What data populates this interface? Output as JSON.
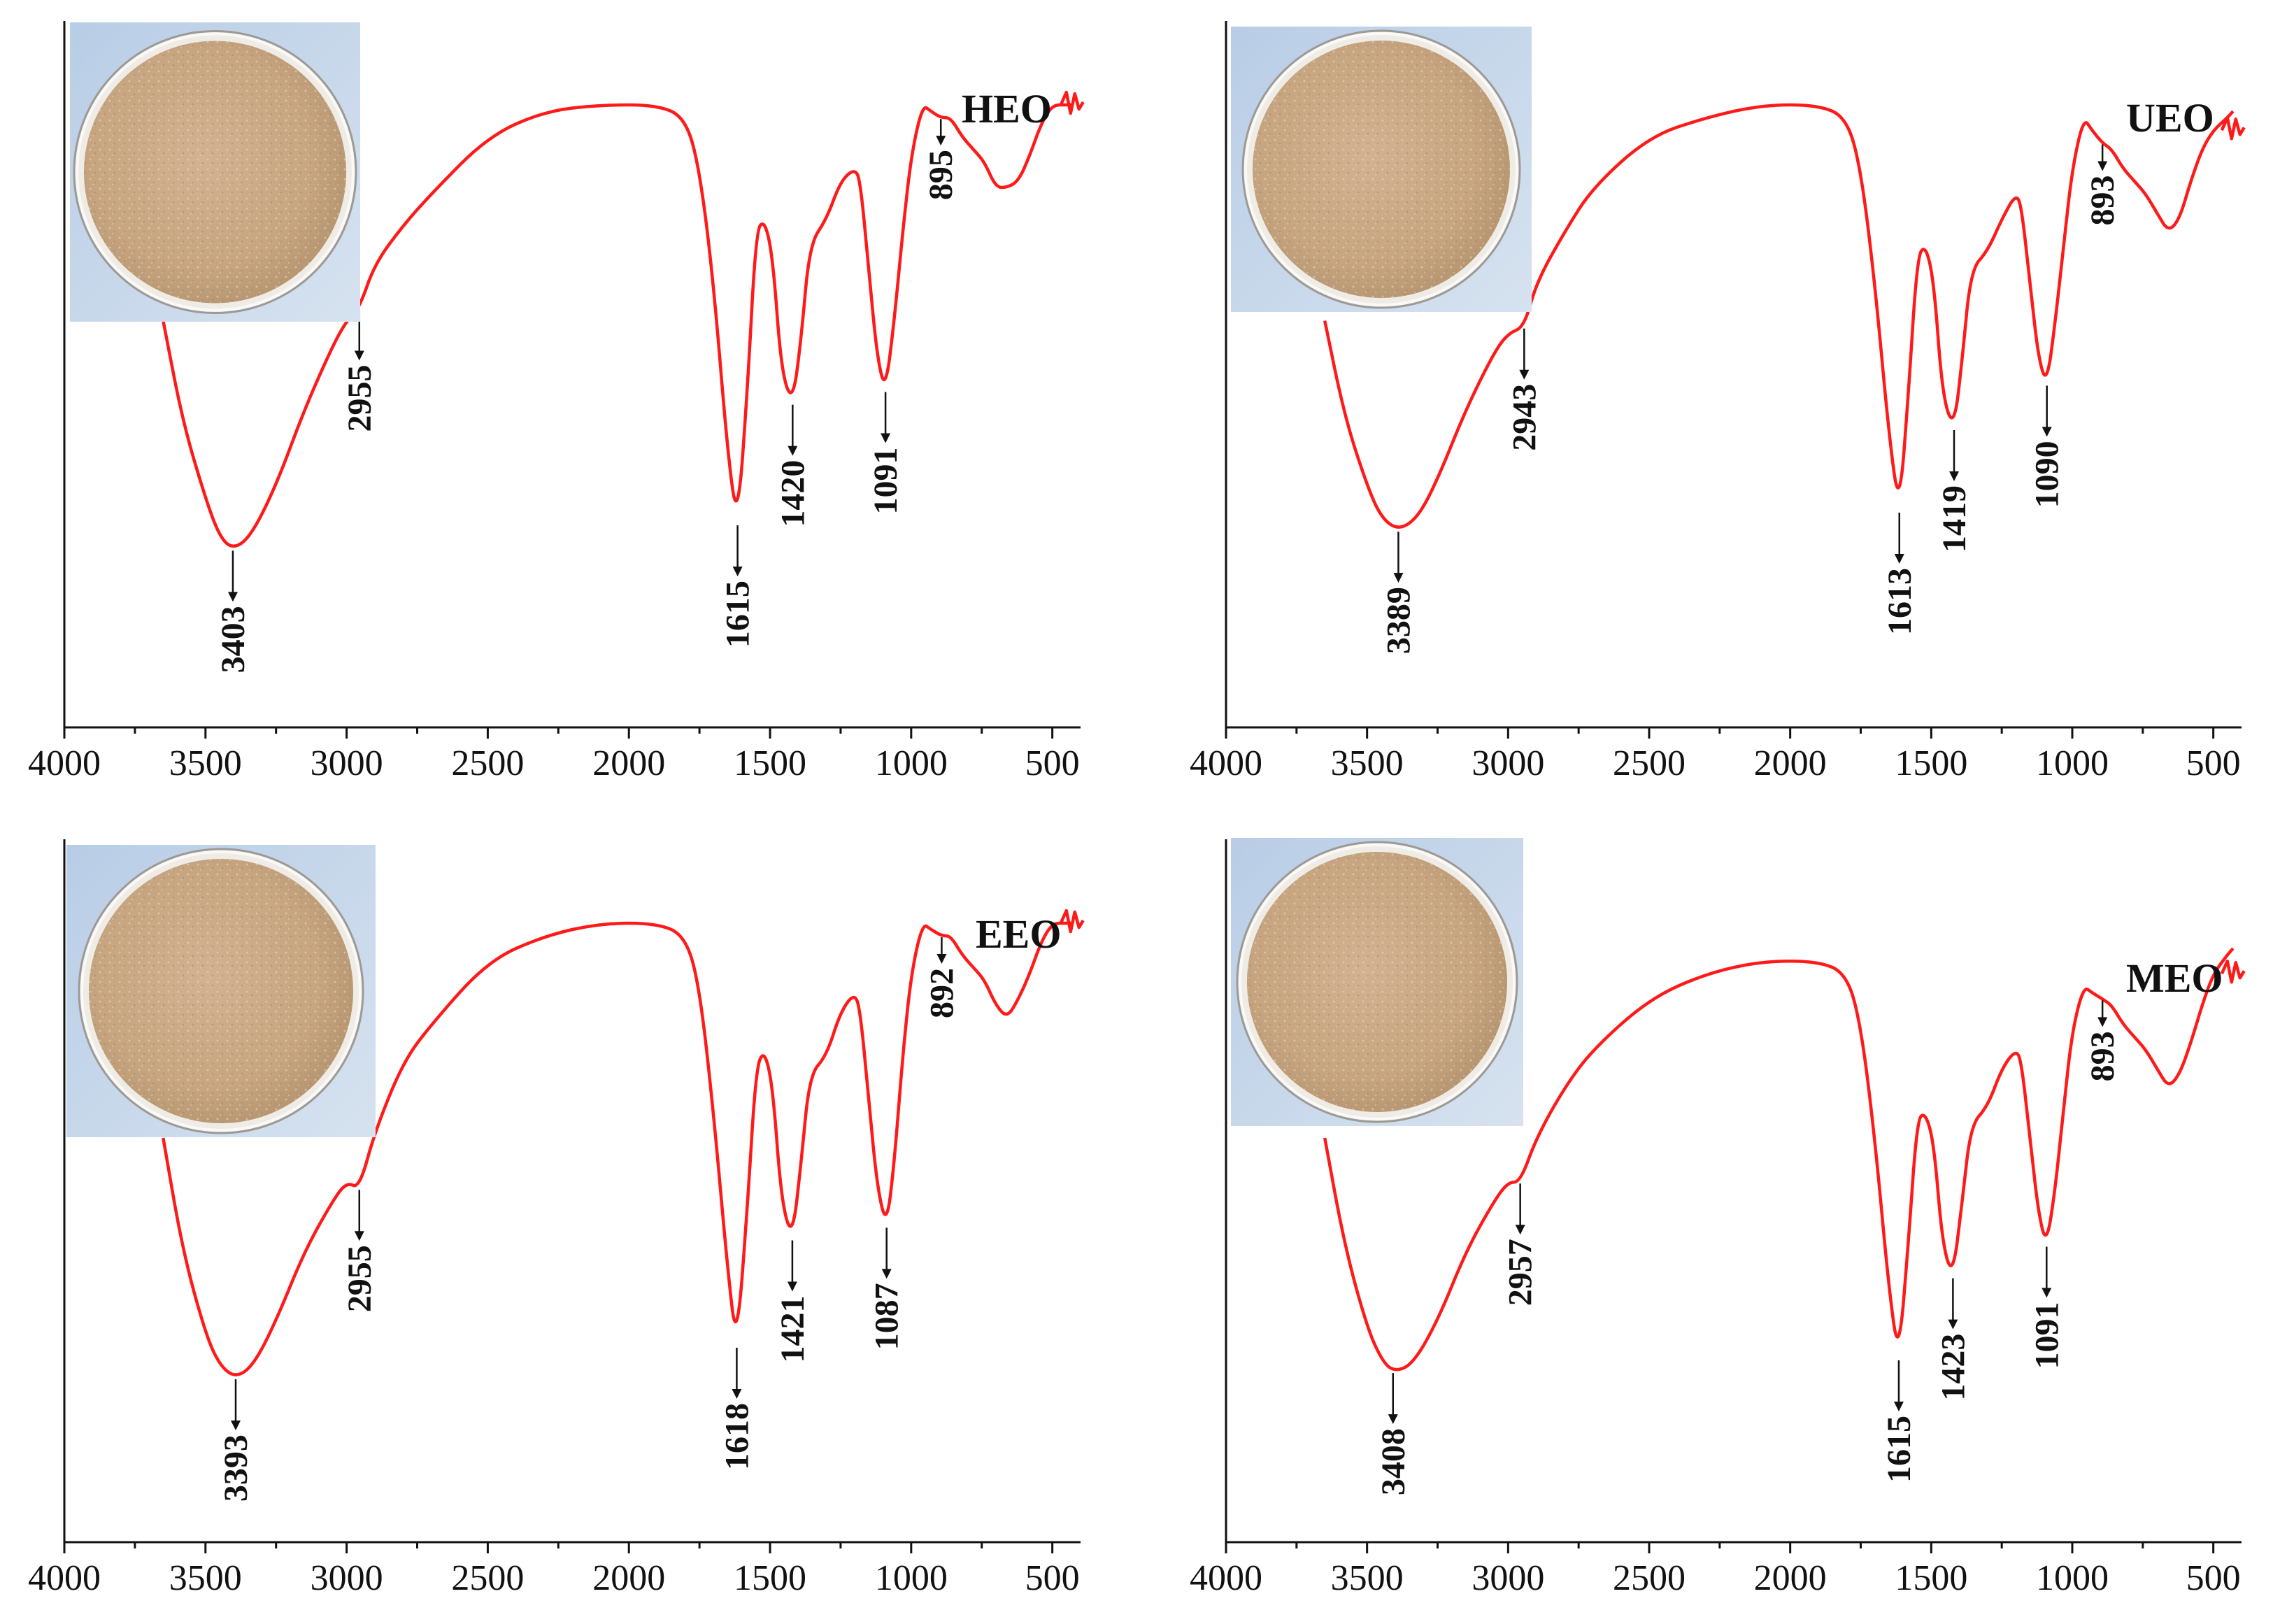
{
  "figure_title": "",
  "colors": {
    "spectrum": "#ff1a1a",
    "axis": "#111111",
    "photo_bg": "#c3d6ea",
    "dish_rim": "#ededea",
    "powder": "#c9a985"
  },
  "chart_data": [
    {
      "type": "line",
      "sample": "HEO",
      "photo_icon": "powder-sample-photo-icon",
      "x_range": [
        4000,
        400
      ],
      "xlabel": "",
      "ylabel": "",
      "x_ticks": [
        4000,
        3500,
        3000,
        2500,
        2000,
        1500,
        1000,
        500
      ],
      "y_ticks": [],
      "peaks": [
        {
          "wavenumber": 3403,
          "label": "3403"
        },
        {
          "wavenumber": 2955,
          "label": "2955"
        },
        {
          "wavenumber": 1615,
          "label": "1615"
        },
        {
          "wavenumber": 1420,
          "label": "1420"
        },
        {
          "wavenumber": 1091,
          "label": "1091"
        },
        {
          "wavenumber": 895,
          "label": "895"
        }
      ],
      "transmittance": [
        [
          3650,
          0.66
        ],
        [
          3580,
          0.5
        ],
        [
          3500,
          0.38
        ],
        [
          3450,
          0.32
        ],
        [
          3403,
          0.3
        ],
        [
          3340,
          0.32
        ],
        [
          3250,
          0.4
        ],
        [
          3150,
          0.52
        ],
        [
          3050,
          0.62
        ],
        [
          3000,
          0.66
        ],
        [
          2955,
          0.68
        ],
        [
          2900,
          0.75
        ],
        [
          2800,
          0.81
        ],
        [
          2700,
          0.86
        ],
        [
          2500,
          0.95
        ],
        [
          2300,
          0.99
        ],
        [
          2100,
          1.0
        ],
        [
          1900,
          1.0
        ],
        [
          1800,
          0.98
        ],
        [
          1750,
          0.9
        ],
        [
          1700,
          0.72
        ],
        [
          1650,
          0.45
        ],
        [
          1615,
          0.34
        ],
        [
          1580,
          0.55
        ],
        [
          1550,
          0.8
        ],
        [
          1520,
          0.82
        ],
        [
          1490,
          0.76
        ],
        [
          1460,
          0.58
        ],
        [
          1420,
          0.53
        ],
        [
          1390,
          0.63
        ],
        [
          1360,
          0.78
        ],
        [
          1300,
          0.82
        ],
        [
          1250,
          0.88
        ],
        [
          1200,
          0.9
        ],
        [
          1180,
          0.88
        ],
        [
          1150,
          0.74
        ],
        [
          1120,
          0.6
        ],
        [
          1091,
          0.55
        ],
        [
          1060,
          0.66
        ],
        [
          1030,
          0.8
        ],
        [
          1000,
          0.92
        ],
        [
          960,
          1.0
        ],
        [
          930,
          0.99
        ],
        [
          895,
          0.98
        ],
        [
          860,
          0.98
        ],
        [
          820,
          0.95
        ],
        [
          780,
          0.93
        ],
        [
          740,
          0.91
        ],
        [
          700,
          0.87
        ],
        [
          660,
          0.87
        ],
        [
          620,
          0.88
        ],
        [
          580,
          0.92
        ],
        [
          540,
          0.97
        ],
        [
          500,
          1.0
        ],
        [
          450,
          1.0
        ],
        [
          430,
          1.0
        ]
      ]
    },
    {
      "type": "line",
      "sample": "UEO",
      "photo_icon": "powder-sample-photo-icon",
      "x_range": [
        4000,
        400
      ],
      "xlabel": "",
      "ylabel": "",
      "x_ticks": [
        4000,
        3500,
        3000,
        2500,
        2000,
        1500,
        1000,
        500
      ],
      "y_ticks": [],
      "peaks": [
        {
          "wavenumber": 3389,
          "label": "3389"
        },
        {
          "wavenumber": 2943,
          "label": "2943"
        },
        {
          "wavenumber": 1613,
          "label": "1613"
        },
        {
          "wavenumber": 1419,
          "label": "1419"
        },
        {
          "wavenumber": 1090,
          "label": "1090"
        },
        {
          "wavenumber": 893,
          "label": "893"
        }
      ],
      "transmittance": [
        [
          3650,
          0.66
        ],
        [
          3580,
          0.51
        ],
        [
          3500,
          0.4
        ],
        [
          3450,
          0.35
        ],
        [
          3389,
          0.33
        ],
        [
          3320,
          0.35
        ],
        [
          3250,
          0.41
        ],
        [
          3150,
          0.52
        ],
        [
          3050,
          0.61
        ],
        [
          3000,
          0.64
        ],
        [
          2943,
          0.65
        ],
        [
          2900,
          0.72
        ],
        [
          2800,
          0.8
        ],
        [
          2700,
          0.87
        ],
        [
          2500,
          0.95
        ],
        [
          2300,
          0.98
        ],
        [
          2100,
          1.0
        ],
        [
          1900,
          1.0
        ],
        [
          1800,
          0.98
        ],
        [
          1750,
          0.9
        ],
        [
          1700,
          0.72
        ],
        [
          1650,
          0.48
        ],
        [
          1613,
          0.36
        ],
        [
          1580,
          0.55
        ],
        [
          1550,
          0.76
        ],
        [
          1520,
          0.78
        ],
        [
          1490,
          0.72
        ],
        [
          1460,
          0.54
        ],
        [
          1419,
          0.49
        ],
        [
          1390,
          0.6
        ],
        [
          1360,
          0.74
        ],
        [
          1300,
          0.77
        ],
        [
          1250,
          0.82
        ],
        [
          1200,
          0.86
        ],
        [
          1180,
          0.84
        ],
        [
          1150,
          0.72
        ],
        [
          1120,
          0.6
        ],
        [
          1090,
          0.56
        ],
        [
          1060,
          0.66
        ],
        [
          1030,
          0.78
        ],
        [
          1000,
          0.9
        ],
        [
          960,
          0.98
        ],
        [
          930,
          0.96
        ],
        [
          893,
          0.94
        ],
        [
          860,
          0.93
        ],
        [
          820,
          0.9
        ],
        [
          780,
          0.88
        ],
        [
          740,
          0.86
        ],
        [
          700,
          0.83
        ],
        [
          660,
          0.8
        ],
        [
          620,
          0.82
        ],
        [
          580,
          0.88
        ],
        [
          540,
          0.93
        ],
        [
          500,
          0.96
        ],
        [
          450,
          0.98
        ],
        [
          430,
          0.99
        ]
      ]
    },
    {
      "type": "line",
      "sample": "EEO",
      "photo_icon": "powder-sample-photo-icon",
      "x_range": [
        4000,
        400
      ],
      "xlabel": "",
      "ylabel": "",
      "x_ticks": [
        4000,
        3500,
        3000,
        2500,
        2000,
        1500,
        1000,
        500
      ],
      "y_ticks": [],
      "peaks": [
        {
          "wavenumber": 3393,
          "label": "3393"
        },
        {
          "wavenumber": 2955,
          "label": "2955"
        },
        {
          "wavenumber": 1618,
          "label": "1618"
        },
        {
          "wavenumber": 1421,
          "label": "1421"
        },
        {
          "wavenumber": 1087,
          "label": "1087"
        },
        {
          "wavenumber": 892,
          "label": "892"
        }
      ],
      "transmittance": [
        [
          3650,
          0.66
        ],
        [
          3580,
          0.48
        ],
        [
          3500,
          0.35
        ],
        [
          3450,
          0.3
        ],
        [
          3393,
          0.28
        ],
        [
          3330,
          0.3
        ],
        [
          3250,
          0.37
        ],
        [
          3150,
          0.48
        ],
        [
          3050,
          0.56
        ],
        [
          3000,
          0.59
        ],
        [
          2955,
          0.58
        ],
        [
          2900,
          0.67
        ],
        [
          2800,
          0.78
        ],
        [
          2700,
          0.84
        ],
        [
          2500,
          0.94
        ],
        [
          2300,
          0.98
        ],
        [
          2100,
          1.0
        ],
        [
          1900,
          1.0
        ],
        [
          1800,
          0.98
        ],
        [
          1750,
          0.9
        ],
        [
          1700,
          0.7
        ],
        [
          1650,
          0.45
        ],
        [
          1618,
          0.33
        ],
        [
          1580,
          0.55
        ],
        [
          1550,
          0.77
        ],
        [
          1520,
          0.8
        ],
        [
          1490,
          0.74
        ],
        [
          1460,
          0.56
        ],
        [
          1421,
          0.5
        ],
        [
          1390,
          0.62
        ],
        [
          1360,
          0.76
        ],
        [
          1300,
          0.79
        ],
        [
          1250,
          0.86
        ],
        [
          1200,
          0.89
        ],
        [
          1180,
          0.86
        ],
        [
          1150,
          0.72
        ],
        [
          1120,
          0.58
        ],
        [
          1087,
          0.52
        ],
        [
          1060,
          0.62
        ],
        [
          1030,
          0.79
        ],
        [
          1000,
          0.92
        ],
        [
          960,
          1.0
        ],
        [
          930,
          0.99
        ],
        [
          892,
          0.98
        ],
        [
          860,
          0.98
        ],
        [
          820,
          0.95
        ],
        [
          780,
          0.93
        ],
        [
          740,
          0.91
        ],
        [
          700,
          0.87
        ],
        [
          660,
          0.85
        ],
        [
          620,
          0.88
        ],
        [
          580,
          0.92
        ],
        [
          540,
          0.97
        ],
        [
          500,
          1.0
        ],
        [
          450,
          1.0
        ],
        [
          430,
          1.0
        ]
      ]
    },
    {
      "type": "line",
      "sample": "MEO",
      "photo_icon": "powder-sample-photo-icon",
      "x_range": [
        4000,
        400
      ],
      "xlabel": "",
      "ylabel": "",
      "x_ticks": [
        4000,
        3500,
        3000,
        2500,
        2000,
        1500,
        1000,
        500
      ],
      "y_ticks": [],
      "peaks": [
        {
          "wavenumber": 3408,
          "label": "3408"
        },
        {
          "wavenumber": 2957,
          "label": "2957"
        },
        {
          "wavenumber": 1615,
          "label": "1615"
        },
        {
          "wavenumber": 1423,
          "label": "1423"
        },
        {
          "wavenumber": 1091,
          "label": "1091"
        },
        {
          "wavenumber": 893,
          "label": "893"
        }
      ],
      "transmittance": [
        [
          3650,
          0.66
        ],
        [
          3580,
          0.49
        ],
        [
          3500,
          0.36
        ],
        [
          3450,
          0.31
        ],
        [
          3408,
          0.29
        ],
        [
          3340,
          0.3
        ],
        [
          3250,
          0.37
        ],
        [
          3150,
          0.48
        ],
        [
          3050,
          0.56
        ],
        [
          3000,
          0.59
        ],
        [
          2957,
          0.59
        ],
        [
          2900,
          0.66
        ],
        [
          2800,
          0.74
        ],
        [
          2700,
          0.8
        ],
        [
          2500,
          0.88
        ],
        [
          2300,
          0.92
        ],
        [
          2100,
          0.94
        ],
        [
          1900,
          0.94
        ],
        [
          1800,
          0.92
        ],
        [
          1750,
          0.84
        ],
        [
          1700,
          0.66
        ],
        [
          1650,
          0.42
        ],
        [
          1615,
          0.31
        ],
        [
          1580,
          0.5
        ],
        [
          1550,
          0.69
        ],
        [
          1520,
          0.7
        ],
        [
          1490,
          0.65
        ],
        [
          1460,
          0.49
        ],
        [
          1423,
          0.44
        ],
        [
          1390,
          0.56
        ],
        [
          1360,
          0.68
        ],
        [
          1300,
          0.71
        ],
        [
          1250,
          0.77
        ],
        [
          1200,
          0.8
        ],
        [
          1180,
          0.78
        ],
        [
          1150,
          0.66
        ],
        [
          1120,
          0.54
        ],
        [
          1091,
          0.49
        ],
        [
          1060,
          0.58
        ],
        [
          1030,
          0.71
        ],
        [
          1000,
          0.83
        ],
        [
          960,
          0.9
        ],
        [
          930,
          0.89
        ],
        [
          893,
          0.88
        ],
        [
          860,
          0.87
        ],
        [
          820,
          0.84
        ],
        [
          780,
          0.82
        ],
        [
          740,
          0.8
        ],
        [
          700,
          0.77
        ],
        [
          660,
          0.74
        ],
        [
          620,
          0.76
        ],
        [
          580,
          0.81
        ],
        [
          540,
          0.87
        ],
        [
          500,
          0.92
        ],
        [
          450,
          0.95
        ],
        [
          430,
          0.96
        ]
      ]
    }
  ]
}
